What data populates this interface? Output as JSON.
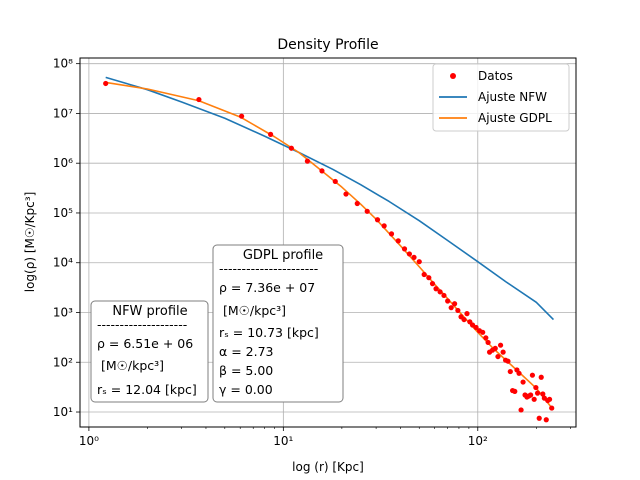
{
  "chart_data": {
    "type": "scatter",
    "title": "Density Profile",
    "xlabel": "log (r) [Kpc]",
    "ylabel": "log(ρ) [M☉/Kpc³]",
    "xscale": "log",
    "yscale": "log",
    "xlim": [
      0.9,
      320
    ],
    "ylim": [
      5,
      130000000
    ],
    "grid": true,
    "x_ticks": [
      {
        "value": 1,
        "label": "10⁰"
      },
      {
        "value": 10,
        "label": "10¹"
      },
      {
        "value": 100,
        "label": "10²"
      }
    ],
    "y_ticks": [
      {
        "value": 10,
        "label": "10¹"
      },
      {
        "value": 100,
        "label": "10²"
      },
      {
        "value": 1000,
        "label": "10³"
      },
      {
        "value": 10000,
        "label": "10⁴"
      },
      {
        "value": 100000,
        "label": "10⁵"
      },
      {
        "value": 1000000,
        "label": "10⁶"
      },
      {
        "value": 10000000,
        "label": "10⁷"
      },
      {
        "value": 100000000,
        "label": "10⁸"
      }
    ],
    "legend_position": "top-right",
    "series": [
      {
        "name": "Datos",
        "kind": "points",
        "color": "#ff0000",
        "points": [
          [
            1.22,
            40000000
          ],
          [
            3.68,
            19000000
          ],
          [
            6.1,
            8800000
          ],
          [
            8.6,
            3800000
          ],
          [
            11.0,
            2000000
          ],
          [
            13.3,
            1100000
          ],
          [
            15.8,
            700000
          ],
          [
            18.5,
            430000
          ],
          [
            21.0,
            240000
          ],
          [
            24.0,
            155000
          ],
          [
            27.0,
            108000
          ],
          [
            30.5,
            73000
          ],
          [
            33.0,
            55000
          ],
          [
            36.0,
            38000
          ],
          [
            39.0,
            27500
          ],
          [
            42.0,
            19000
          ],
          [
            44.5,
            15000
          ],
          [
            47.0,
            12800
          ],
          [
            50.0,
            10500
          ],
          [
            53.0,
            5800
          ],
          [
            56.0,
            5000
          ],
          [
            58.5,
            3800
          ],
          [
            61.0,
            3000
          ],
          [
            64.0,
            2600
          ],
          [
            67.0,
            2200
          ],
          [
            70.0,
            1700
          ],
          [
            73.0,
            1250
          ],
          [
            76.0,
            1500
          ],
          [
            79.0,
            1100
          ],
          [
            82.0,
            820
          ],
          [
            85.0,
            720
          ],
          [
            88.0,
            950
          ],
          [
            91.0,
            650
          ],
          [
            94.0,
            560
          ],
          [
            98.0,
            500
          ],
          [
            102.0,
            430
          ],
          [
            106.0,
            400
          ],
          [
            110.0,
            310
          ],
          [
            113.0,
            250
          ],
          [
            115.0,
            160
          ],
          [
            119.0,
            175
          ],
          [
            123.0,
            190
          ],
          [
            127.0,
            130
          ],
          [
            131.0,
            220
          ],
          [
            135.0,
            160
          ],
          [
            139.0,
            110
          ],
          [
            143.0,
            105
          ],
          [
            147.0,
            65
          ],
          [
            151.0,
            27
          ],
          [
            155.0,
            26
          ],
          [
            159.0,
            70
          ],
          [
            163.0,
            60
          ],
          [
            167.0,
            11
          ],
          [
            171.0,
            40
          ],
          [
            175.0,
            22
          ],
          [
            179.0,
            20
          ],
          [
            183.0,
            21
          ],
          [
            187.0,
            22
          ],
          [
            191.0,
            55
          ],
          [
            195.0,
            18
          ],
          [
            199.0,
            31
          ],
          [
            203.0,
            24
          ],
          [
            207.0,
            7.5
          ],
          [
            212.0,
            50
          ],
          [
            216.0,
            23
          ],
          [
            220.0,
            19
          ],
          [
            225.0,
            7
          ],
          [
            229.0,
            17
          ],
          [
            234.0,
            18
          ],
          [
            240.0,
            12
          ]
        ]
      },
      {
        "name": "Ajuste NFW",
        "kind": "line",
        "color": "#1f77b4",
        "points": [
          [
            1.22,
            53000000
          ],
          [
            2.0,
            30000000
          ],
          [
            3.0,
            17000000
          ],
          [
            5.0,
            8000000
          ],
          [
            8.0,
            3500000
          ],
          [
            12.0,
            1650000
          ],
          [
            18.0,
            750000
          ],
          [
            25.0,
            370000
          ],
          [
            35.0,
            170000
          ],
          [
            50.0,
            70000
          ],
          [
            70.0,
            28000
          ],
          [
            100.0,
            10500
          ],
          [
            140.0,
            4100
          ],
          [
            200.0,
            1600
          ],
          [
            245.0,
            720
          ]
        ]
      },
      {
        "name": "Ajuste GDPL",
        "kind": "line",
        "color": "#ff7f0e",
        "points": [
          [
            1.22,
            42000000
          ],
          [
            2.0,
            31000000
          ],
          [
            3.68,
            18000000
          ],
          [
            6.0,
            8500000
          ],
          [
            9.0,
            3400000
          ],
          [
            12.0,
            1650000
          ],
          [
            15.0,
            820000
          ],
          [
            20.0,
            330000
          ],
          [
            25.0,
            150000
          ],
          [
            30.0,
            75000
          ],
          [
            40.0,
            22000
          ],
          [
            50.0,
            8300
          ],
          [
            60.0,
            3700
          ],
          [
            70.0,
            1900
          ],
          [
            80.0,
            1050
          ],
          [
            100.0,
            400
          ],
          [
            120.0,
            190
          ],
          [
            150.0,
            85
          ],
          [
            200.0,
            30
          ],
          [
            245.0,
            11
          ]
        ]
      }
    ]
  },
  "text_boxes": {
    "nfw": {
      "heading": "NFW profile",
      "separator": "--------------------",
      "line1": "ρ = 6.51e + 06",
      "line2": "[M☉/kpc³]",
      "line3": "rₛ = 12.04 [kpc]"
    },
    "gdpl": {
      "heading": "GDPL profile",
      "separator": "----------------------",
      "line1": "ρ = 7.36e + 07",
      "line2": "[M☉/kpc³]",
      "line3": "rₛ = 10.73 [kpc]",
      "line4": "α = 2.73",
      "line5": "β = 5.00",
      "line6": "γ = 0.00"
    }
  }
}
